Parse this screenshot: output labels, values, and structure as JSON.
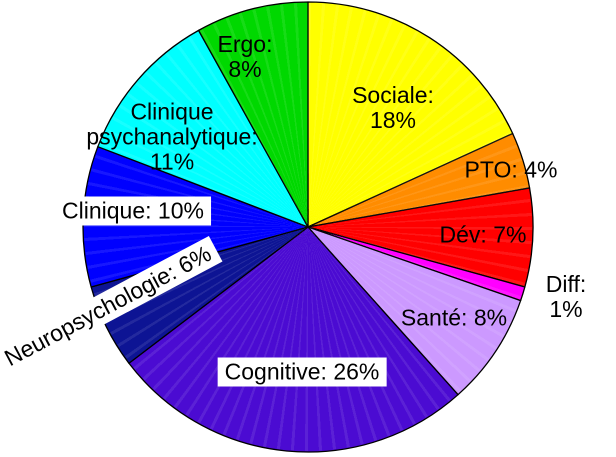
{
  "chart_data": {
    "type": "pie",
    "title": "",
    "direction": "clockwise",
    "start_angle_deg": 0,
    "start_position": "top",
    "values_sum": 99,
    "outline_color": "#000000",
    "background_color": "#ffffff",
    "segments": [
      {
        "label": "Sociale",
        "value": 18,
        "display": "Sociale:\n18%",
        "color": "#FFFF00"
      },
      {
        "label": "PTO",
        "value": 4,
        "display": "PTO: 4%",
        "color": "#FF8C00"
      },
      {
        "label": "Dév",
        "value": 7,
        "display": "Dév: 7%",
        "color": "#FF0000"
      },
      {
        "label": "Diff",
        "value": 1,
        "display": "Diff: 1%",
        "color": "#FF00FF"
      },
      {
        "label": "Santé",
        "value": 8,
        "display": "Santé: 8%",
        "color": "#CC99FF"
      },
      {
        "label": "Cognitive",
        "value": 26,
        "display": "Cognitive: 26%",
        "color": "#4B0BD2"
      },
      {
        "label": "Neuropsychologie",
        "value": 6,
        "display": "Neuropsychologie: 6%",
        "color": "#0D1494"
      },
      {
        "label": "Clinique",
        "value": 10,
        "display": "Clinique: 10%",
        "color": "#0000FF"
      },
      {
        "label": "Clinique psychanalytique",
        "value": 11,
        "display": "Clinique\npsychanalytique:\n11%",
        "color": "#00FFFF"
      },
      {
        "label": "Ergo",
        "value": 8,
        "display": "Ergo:\n8%",
        "color": "#00D800"
      }
    ]
  }
}
